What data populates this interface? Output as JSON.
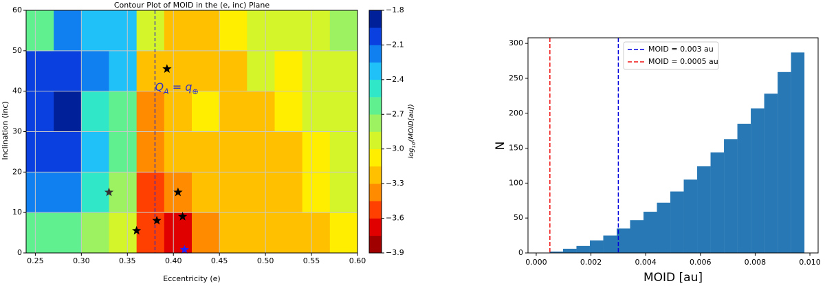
{
  "chart_data": [
    {
      "type": "contour",
      "title": "Contour Plot of MOID in the (e, inc) Plane",
      "x_label": "Eccentricity (e)",
      "y_label": "Inclination (inc)",
      "xlim": [
        0.24,
        0.6
      ],
      "ylim": [
        0,
        60
      ],
      "xticks": [
        {
          "value": 0.25,
          "label": "0.25"
        },
        {
          "value": 0.3,
          "label": "0.30"
        },
        {
          "value": 0.35,
          "label": "0.35"
        },
        {
          "value": 0.4,
          "label": "0.40"
        },
        {
          "value": 0.45,
          "label": "0.45"
        },
        {
          "value": 0.5,
          "label": "0.50"
        },
        {
          "value": 0.55,
          "label": "0.55"
        },
        {
          "value": 0.6,
          "label": "0.60"
        }
      ],
      "yticks": [
        0,
        10,
        20,
        30,
        40,
        50,
        60
      ],
      "grid": true,
      "x_edges": [
        0.24,
        0.27,
        0.3,
        0.33,
        0.36,
        0.39,
        0.42,
        0.45,
        0.48,
        0.51,
        0.54,
        0.57,
        0.6
      ],
      "y_edges": [
        0,
        10,
        20,
        30,
        40,
        50,
        60
      ],
      "z": [
        [
          -2.6,
          -2.6,
          -2.8,
          -3.0,
          -3.6,
          -3.7,
          -3.4,
          -3.3,
          -3.3,
          -3.2,
          -3.2,
          -3.1
        ],
        [
          -2.2,
          -2.2,
          -2.5,
          -2.8,
          -3.5,
          -3.4,
          -3.3,
          -3.3,
          -3.2,
          -3.2,
          -3.1,
          -3.0
        ],
        [
          -2.1,
          -2.0,
          -2.4,
          -2.7,
          -3.4,
          -3.3,
          -3.2,
          -3.2,
          -3.2,
          -3.3,
          -3.1,
          -2.9
        ],
        [
          -2.0,
          -1.9,
          -2.5,
          -2.6,
          -3.4,
          -3.3,
          -3.1,
          -3.2,
          -3.3,
          -3.1,
          -3.0,
          -2.9
        ],
        [
          -2.1,
          -2.0,
          -2.2,
          -2.3,
          -3.3,
          -3.3,
          -3.2,
          -3.2,
          -3.0,
          -3.1,
          -3.0,
          -2.9
        ],
        [
          -2.6,
          -2.2,
          -2.3,
          -2.3,
          -3.0,
          -3.3,
          -3.2,
          -3.1,
          -3.0,
          -3.0,
          -2.9,
          -2.8
        ]
      ],
      "colorbar": {
        "label_parts": [
          "log",
          "10",
          "(MOID[au])"
        ],
        "levels": [
          -3.9,
          -3.75,
          -3.6,
          -3.45,
          -3.3,
          -3.15,
          -3.0,
          -2.85,
          -2.7,
          -2.55,
          -2.4,
          -2.25,
          -2.1,
          -1.95,
          -1.8
        ],
        "colors": [
          "#a00000",
          "#e00000",
          "#ff4000",
          "#ff8c00",
          "#ffc000",
          "#ffee00",
          "#d4f52a",
          "#9cf260",
          "#60f090",
          "#30e8c8",
          "#20c0f8",
          "#1080f0",
          "#0a40e0",
          "#00209a"
        ],
        "ticks": [
          {
            "value": -1.8,
            "label": "−1.8"
          },
          {
            "value": -2.1,
            "label": "−2.1"
          },
          {
            "value": -2.4,
            "label": "−2.4"
          },
          {
            "value": -2.7,
            "label": "−2.7"
          },
          {
            "value": -3.0,
            "label": "−3.0"
          },
          {
            "value": -3.3,
            "label": "−3.3"
          },
          {
            "value": -3.6,
            "label": "−3.6"
          },
          {
            "value": -3.9,
            "label": "−3.9"
          }
        ]
      },
      "vline": {
        "x": 0.38,
        "color": "#3030c0",
        "label_parts": [
          "Q",
          "A",
          " = q",
          "⊕"
        ]
      },
      "stars": {
        "x": [
          0.33,
          0.36,
          0.382,
          0.393,
          0.405,
          0.41,
          0.412
        ],
        "y": [
          15,
          5.5,
          8,
          45.5,
          15,
          9,
          0.8
        ],
        "colors": [
          "#333333",
          "#000000",
          "#000000",
          "#000000",
          "#000000",
          "#000000",
          "#2020ff"
        ]
      }
    },
    {
      "type": "histogram",
      "x_label": "MOID [au]",
      "y_label": "N",
      "xlim": [
        -0.0003,
        0.0103
      ],
      "ylim": [
        0,
        308
      ],
      "xticks": [
        {
          "value": 0,
          "label": "0.000"
        },
        {
          "value": 0.002,
          "label": "0.002"
        },
        {
          "value": 0.004,
          "label": "0.004"
        },
        {
          "value": 0.006,
          "label": "0.006"
        },
        {
          "value": 0.008,
          "label": "0.008"
        },
        {
          "value": 0.01,
          "label": "0.010"
        }
      ],
      "yticks": [
        0,
        50,
        100,
        150,
        200,
        250,
        300
      ],
      "color": "#2878b5",
      "bins": [
        0,
        0.00049,
        0.00098,
        0.00147,
        0.00196,
        0.00245,
        0.00294,
        0.00343,
        0.00392,
        0.00441,
        0.0049,
        0.00539,
        0.00588,
        0.00637,
        0.00686,
        0.00735,
        0.00784,
        0.00833,
        0.00882,
        0.00931,
        0.0098
      ],
      "counts": [
        0,
        2,
        6,
        10,
        18,
        25,
        35,
        47,
        59,
        72,
        88,
        105,
        124,
        144,
        163,
        185,
        207,
        228,
        259,
        287
      ],
      "vlines": [
        {
          "x": 0.003,
          "color": "#0000dd",
          "name": "MOID = 0.003 au"
        },
        {
          "x": 0.0005,
          "color": "#ee1111",
          "name": "MOID = 0.0005 au"
        }
      ],
      "legend": "upper center"
    }
  ]
}
